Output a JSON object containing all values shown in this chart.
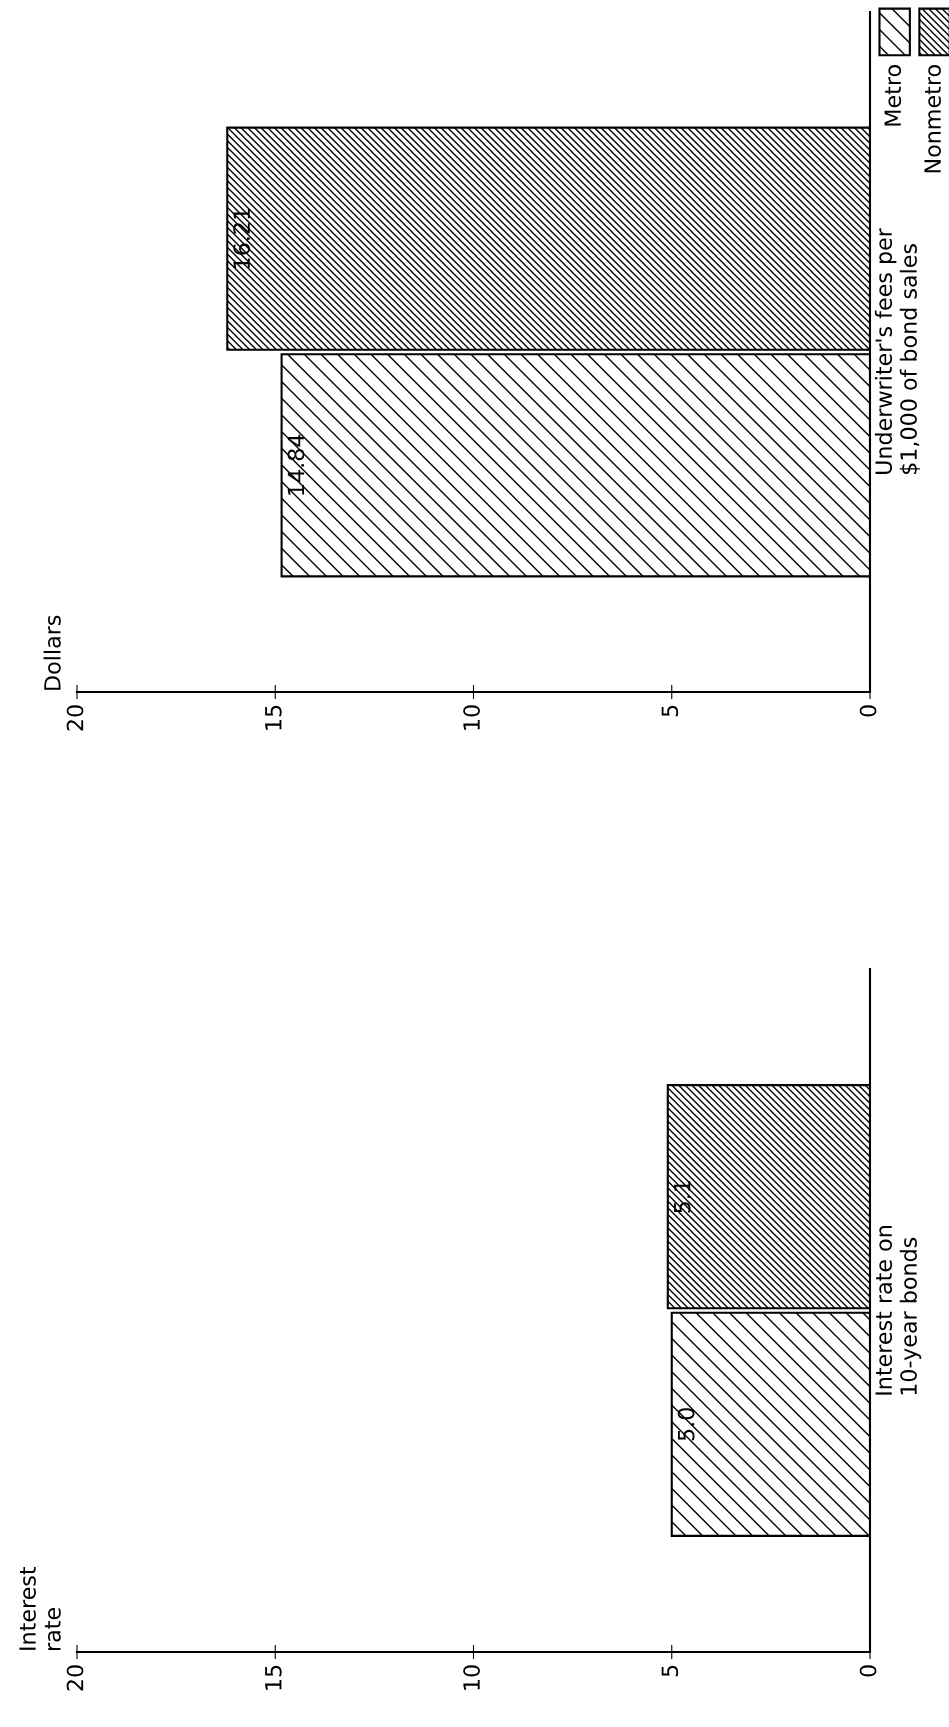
{
  "chart_data": [
    {
      "type": "bar",
      "orientation": "horizontal",
      "ylabel": "Interest\nrate",
      "categories": [
        "Interest rate on\n10-year bonds"
      ],
      "series": [
        {
          "color": "#000000",
          "values": [
            5.0
          ],
          "value_labels": [
            "5.0"
          ]
        },
        {
          "color": "#000000",
          "values": [
            5.1
          ],
          "value_labels": [
            "5.1"
          ]
        }
      ],
      "xlim": [
        20,
        0
      ],
      "xticks": [
        20,
        15,
        10,
        5,
        0
      ],
      "grid": false
    },
    {
      "type": "bar",
      "orientation": "horizontal",
      "ylabel": "Dollars",
      "categories": [
        "Underwriter's fees per\n$1,000 of bond sales"
      ],
      "series": [
        {
          "name": "Metro",
          "color": "#000000",
          "values": [
            14.84
          ],
          "value_labels": [
            "14.84"
          ]
        },
        {
          "name": "Nonmetro",
          "color": "#000000",
          "values": [
            16.21
          ],
          "value_labels": [
            "16.21"
          ]
        }
      ],
      "xlim": [
        20,
        0
      ],
      "xticks": [
        20,
        15,
        10,
        5,
        0
      ],
      "grid": false,
      "legend": "top right"
    }
  ]
}
